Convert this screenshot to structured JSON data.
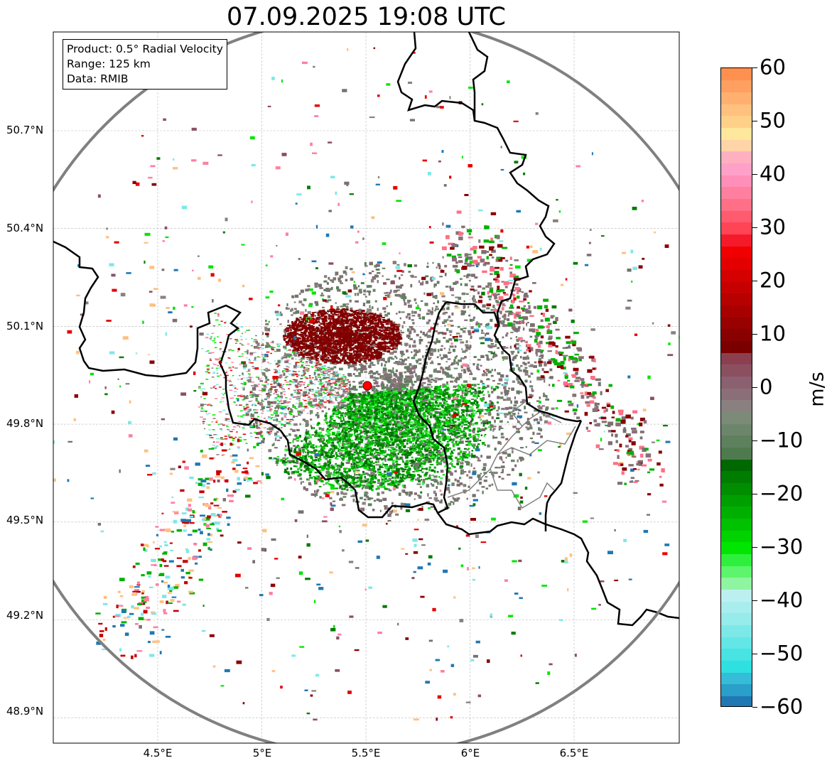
{
  "title": "07.09.2025 19:08 UTC",
  "info": {
    "product": "Product: 0.5° Radial Velocity",
    "range": "Range: 125 km",
    "source": "Data: RMIB"
  },
  "axes": {
    "lon_labels": [
      "4.5°E",
      "5°E",
      "5.5°E",
      "6°E",
      "6.5°E"
    ],
    "lat_labels": [
      "50.7°N",
      "50.4°N",
      "50.1°N",
      "49.8°N",
      "49.5°N",
      "49.2°N",
      "48.9°N"
    ],
    "lon_ticks": [
      4.5,
      5.0,
      5.5,
      6.0,
      6.5
    ],
    "lat_ticks": [
      50.7,
      50.4,
      50.1,
      49.8,
      49.5,
      49.2,
      48.9
    ],
    "lon_range": [
      4.0,
      7.0
    ],
    "lat_range": [
      48.8,
      51.0
    ],
    "grid": true
  },
  "radar": {
    "site_lon": 5.505,
    "site_lat": 49.915,
    "site_marker_color": "#ff0000",
    "range_ring_color": "#808080"
  },
  "colorbar": {
    "unit": "m/s",
    "min": -60,
    "max": 60,
    "tick_values": [
      -60,
      -50,
      -40,
      -30,
      -20,
      -10,
      0,
      10,
      20,
      30,
      40,
      50,
      60
    ],
    "tick_labels": [
      "−60",
      "−50",
      "−40",
      "−30",
      "−20",
      "−10",
      "0",
      "10",
      "20",
      "30",
      "40",
      "50",
      "60"
    ],
    "colors": [
      "#1f78b4",
      "#2a9fc9",
      "#35bcd6",
      "#2fe0e0",
      "#48e3e3",
      "#63e6e6",
      "#7de8e8",
      "#96ebeb",
      "#a8eeee",
      "#bcf0f0",
      "#8ff5a0",
      "#5cf56b",
      "#2ef03c",
      "#00e600",
      "#00d300",
      "#00c200",
      "#00b000",
      "#009f00",
      "#008e00",
      "#007d00",
      "#006800",
      "#4f7a4f",
      "#5d805d",
      "#6c866c",
      "#7b8b78",
      "#8b8080",
      "#8b6f78",
      "#8b6070",
      "#8b5060",
      "#8b4050",
      "#7a0000",
      "#890000",
      "#990000",
      "#a80000",
      "#b70000",
      "#c60000",
      "#d50000",
      "#e40000",
      "#f00000",
      "#f51a2a",
      "#ff4455",
      "#ff5a6e",
      "#ff6f86",
      "#ff7f9e",
      "#ff8fb8",
      "#ffa0c8",
      "#ffb0c0",
      "#ffd5a8",
      "#ffe89c",
      "#ffd088",
      "#ffc080",
      "#ffb070",
      "#ffa060",
      "#ff9050"
    ]
  },
  "colors": {
    "border": "#000000",
    "region_border": "#808080",
    "inbound_green": "#007d00",
    "outbound_red": "#7a0000",
    "near_zero": "#8b8080"
  }
}
